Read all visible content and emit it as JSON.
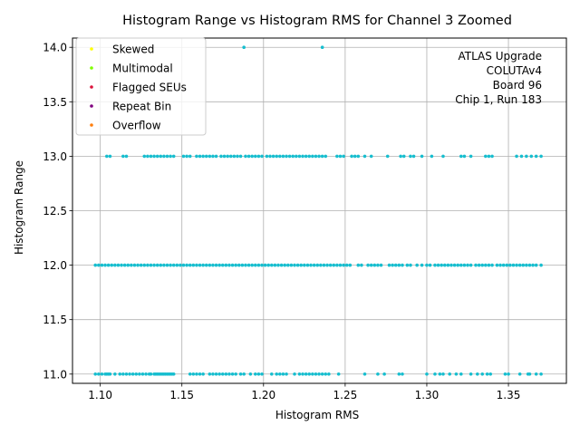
{
  "chart_data": {
    "type": "scatter",
    "title": "Histogram Range vs Histogram RMS for Channel 3 Zoomed",
    "xlabel": "Histogram RMS",
    "ylabel": "Histogram Range",
    "xlim": [
      1.083,
      1.3855
    ],
    "ylim": [
      10.915,
      14.085
    ],
    "xticks": [
      "1.10",
      "1.15",
      "1.20",
      "1.25",
      "1.30",
      "1.35"
    ],
    "xtick_values": [
      1.1,
      1.15,
      1.2,
      1.25,
      1.3,
      1.35
    ],
    "yticks": [
      "11.0",
      "11.5",
      "12.0",
      "12.5",
      "13.0",
      "13.5",
      "14.0"
    ],
    "ytick_values": [
      11.0,
      11.5,
      12.0,
      12.5,
      13.0,
      13.5,
      14.0
    ],
    "grid": true,
    "legend_placement": "top-left",
    "legend": [
      {
        "label": "Skewed",
        "color": "#ffff00"
      },
      {
        "label": "Multimodal",
        "color": "#7fff00"
      },
      {
        "label": "Flagged SEUs",
        "color": "#dc143c"
      },
      {
        "label": "Repeat Bin",
        "color": "#800080"
      },
      {
        "label": "Overflow",
        "color": "#ff7f0e"
      }
    ],
    "annotation": [
      "ATLAS Upgrade",
      "COLUTAv4",
      "Board 96",
      "Chip 1, Run 183"
    ],
    "point_color": "#17becf",
    "series": [
      {
        "y": 11.0,
        "x": [
          1.097,
          1.099,
          1.101,
          1.103,
          1.104,
          1.105,
          1.106,
          1.109,
          1.112,
          1.114,
          1.116,
          1.118,
          1.12,
          1.122,
          1.124,
          1.126,
          1.128,
          1.13,
          1.131,
          1.133,
          1.134,
          1.135,
          1.136,
          1.137,
          1.138,
          1.139,
          1.14,
          1.141,
          1.142,
          1.143,
          1.144,
          1.145,
          1.155,
          1.157,
          1.159,
          1.161,
          1.163,
          1.167,
          1.169,
          1.171,
          1.173,
          1.175,
          1.177,
          1.179,
          1.181,
          1.183,
          1.186,
          1.188,
          1.192,
          1.195,
          1.197,
          1.199,
          1.205,
          1.208,
          1.21,
          1.212,
          1.214,
          1.219,
          1.222,
          1.224,
          1.226,
          1.228,
          1.23,
          1.232,
          1.234,
          1.236,
          1.238,
          1.24,
          1.246,
          1.262,
          1.27,
          1.274,
          1.283,
          1.285,
          1.3,
          1.305,
          1.308,
          1.31,
          1.314,
          1.318,
          1.321,
          1.327,
          1.331,
          1.334,
          1.337,
          1.339,
          1.348,
          1.35,
          1.357,
          1.362,
          1.363,
          1.367,
          1.37
        ]
      },
      {
        "y": 12.0,
        "x": [
          1.097,
          1.099,
          1.101,
          1.103,
          1.105,
          1.107,
          1.109,
          1.111,
          1.113,
          1.115,
          1.117,
          1.119,
          1.121,
          1.123,
          1.125,
          1.127,
          1.129,
          1.131,
          1.133,
          1.135,
          1.137,
          1.139,
          1.141,
          1.143,
          1.145,
          1.147,
          1.149,
          1.151,
          1.153,
          1.155,
          1.157,
          1.159,
          1.161,
          1.163,
          1.165,
          1.167,
          1.169,
          1.171,
          1.173,
          1.175,
          1.177,
          1.179,
          1.181,
          1.183,
          1.185,
          1.187,
          1.189,
          1.191,
          1.193,
          1.195,
          1.197,
          1.199,
          1.201,
          1.203,
          1.205,
          1.207,
          1.209,
          1.211,
          1.213,
          1.215,
          1.217,
          1.219,
          1.221,
          1.223,
          1.225,
          1.227,
          1.229,
          1.231,
          1.233,
          1.235,
          1.237,
          1.239,
          1.241,
          1.243,
          1.245,
          1.247,
          1.249,
          1.251,
          1.253,
          1.258,
          1.26,
          1.264,
          1.266,
          1.268,
          1.27,
          1.272,
          1.277,
          1.279,
          1.281,
          1.283,
          1.285,
          1.288,
          1.29,
          1.294,
          1.297,
          1.3,
          1.302,
          1.305,
          1.307,
          1.309,
          1.311,
          1.313,
          1.315,
          1.317,
          1.319,
          1.321,
          1.323,
          1.325,
          1.327,
          1.33,
          1.332,
          1.334,
          1.336,
          1.338,
          1.34,
          1.343,
          1.345,
          1.347,
          1.349,
          1.351,
          1.353,
          1.355,
          1.357,
          1.359,
          1.361,
          1.363,
          1.365,
          1.367,
          1.37
        ]
      },
      {
        "y": 13.0,
        "x": [
          1.104,
          1.106,
          1.114,
          1.116,
          1.127,
          1.129,
          1.131,
          1.133,
          1.135,
          1.137,
          1.139,
          1.141,
          1.143,
          1.145,
          1.151,
          1.153,
          1.155,
          1.159,
          1.161,
          1.163,
          1.165,
          1.167,
          1.169,
          1.171,
          1.174,
          1.176,
          1.178,
          1.18,
          1.182,
          1.184,
          1.186,
          1.189,
          1.191,
          1.193,
          1.195,
          1.197,
          1.199,
          1.202,
          1.204,
          1.206,
          1.208,
          1.21,
          1.212,
          1.214,
          1.216,
          1.218,
          1.22,
          1.222,
          1.224,
          1.226,
          1.228,
          1.23,
          1.232,
          1.234,
          1.236,
          1.238,
          1.245,
          1.247,
          1.249,
          1.254,
          1.256,
          1.258,
          1.262,
          1.266,
          1.276,
          1.284,
          1.286,
          1.29,
          1.292,
          1.297,
          1.303,
          1.31,
          1.321,
          1.323,
          1.327,
          1.336,
          1.338,
          1.34,
          1.355,
          1.358,
          1.361,
          1.364,
          1.367,
          1.37
        ]
      },
      {
        "y": 14.0,
        "x": [
          1.188,
          1.236
        ]
      }
    ]
  }
}
